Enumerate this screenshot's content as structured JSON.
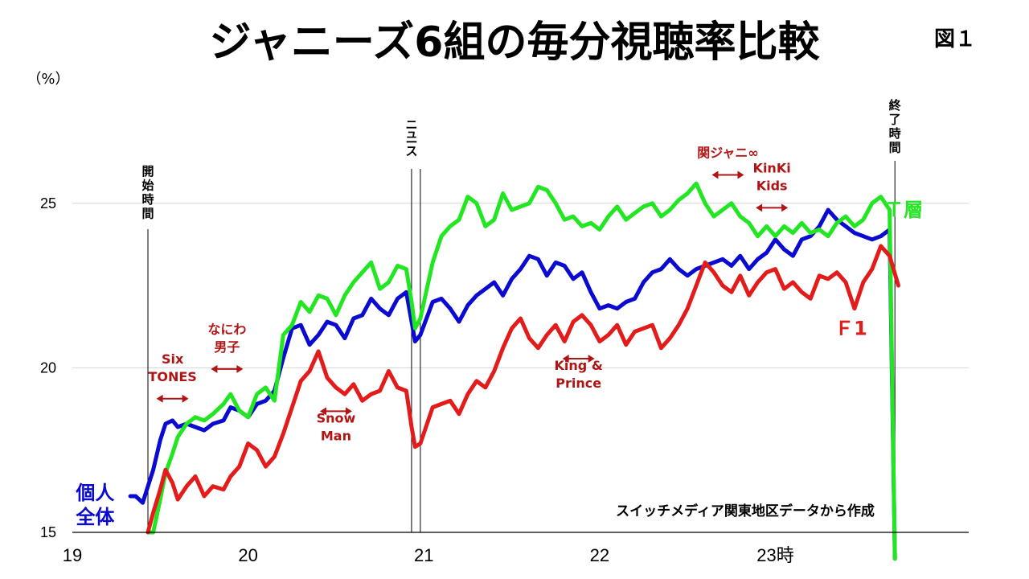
{
  "chart_data": {
    "type": "line",
    "title": "ジャニーズ6組の毎分視聴率比較",
    "figure_label": "図１",
    "unit_label": "（%）",
    "source_note": "スイッチメディア関東地区データから作成",
    "x_ticks": [
      {
        "value": 19,
        "label": "19"
      },
      {
        "value": 20,
        "label": "20"
      },
      {
        "value": 21,
        "label": "21"
      },
      {
        "value": 22,
        "label": "22"
      },
      {
        "value": 23,
        "label": "23時"
      }
    ],
    "y_ticks": [
      15,
      20,
      25
    ],
    "xlim": [
      19,
      24.1
    ],
    "ylim": [
      15,
      28
    ],
    "grid": "horizontal",
    "markers": [
      {
        "x": 19.43,
        "label": "開始時間"
      },
      {
        "x": 20.93,
        "label": "ニュース"
      },
      {
        "x": 20.98,
        "label": ""
      },
      {
        "x": 23.68,
        "label": "終了時間"
      }
    ],
    "segment_labels": [
      {
        "lines": [
          "Six",
          "TONES"
        ],
        "x": 19.57,
        "y": 19.6
      },
      {
        "lines": [
          "なにわ",
          "男子"
        ],
        "x": 19.88,
        "y": 20.5
      },
      {
        "lines": [
          "Snow",
          "Man"
        ],
        "x": 20.5,
        "y": 17.8
      },
      {
        "lines": [
          "King &",
          "Prince"
        ],
        "x": 21.88,
        "y": 19.4
      },
      {
        "lines": [
          "関ジャニ∞"
        ],
        "x": 22.73,
        "y": 26.4
      },
      {
        "lines": [
          "KinKi",
          "Kids"
        ],
        "x": 22.98,
        "y": 25.4
      }
    ],
    "series": [
      {
        "name": "個人\n全体",
        "color": "#0a0ad0",
        "x": [
          19.33,
          19.36,
          19.4,
          19.43,
          19.46,
          19.5,
          19.53,
          19.57,
          19.6,
          19.65,
          19.7,
          19.75,
          19.8,
          19.86,
          19.9,
          19.95,
          20.0,
          20.05,
          20.1,
          20.15,
          20.2,
          20.25,
          20.3,
          20.35,
          20.4,
          20.45,
          20.5,
          20.55,
          20.6,
          20.65,
          20.7,
          20.75,
          20.8,
          20.85,
          20.9,
          20.93,
          20.95,
          20.98,
          21.05,
          21.1,
          21.15,
          21.2,
          21.25,
          21.3,
          21.35,
          21.4,
          21.45,
          21.5,
          21.55,
          21.6,
          21.65,
          21.7,
          21.75,
          21.8,
          21.85,
          21.9,
          21.95,
          22.0,
          22.05,
          22.1,
          22.15,
          22.2,
          22.25,
          22.3,
          22.35,
          22.4,
          22.45,
          22.5,
          22.55,
          22.6,
          22.65,
          22.7,
          22.75,
          22.8,
          22.85,
          22.9,
          22.95,
          23.0,
          23.05,
          23.1,
          23.15,
          23.2,
          23.25,
          23.3,
          23.35,
          23.4,
          23.45,
          23.5,
          23.55,
          23.6,
          23.65,
          23.68
        ],
        "y": [
          16.1,
          16.1,
          15.9,
          16.4,
          16.9,
          17.8,
          18.3,
          18.4,
          18.2,
          18.3,
          18.2,
          18.1,
          18.3,
          18.4,
          18.8,
          18.7,
          18.5,
          18.9,
          19.0,
          19.3,
          20.3,
          21.2,
          21.3,
          20.7,
          21.0,
          21.4,
          21.3,
          20.9,
          21.5,
          21.6,
          22.1,
          21.8,
          21.6,
          22.1,
          22.3,
          21.4,
          20.8,
          21.0,
          22.0,
          22.1,
          21.8,
          21.4,
          21.9,
          22.2,
          22.4,
          22.6,
          22.2,
          22.7,
          23.0,
          23.4,
          23.3,
          22.8,
          23.2,
          23.1,
          22.7,
          22.9,
          22.3,
          21.8,
          21.9,
          21.8,
          22.0,
          22.1,
          22.6,
          22.9,
          23.0,
          23.3,
          23.0,
          22.8,
          23.0,
          23.1,
          23.2,
          23.3,
          23.1,
          23.4,
          23.0,
          23.3,
          23.5,
          23.9,
          23.6,
          23.4,
          23.9,
          24.0,
          24.3,
          24.8,
          24.5,
          24.3,
          24.1,
          24.0,
          23.9,
          24.0,
          24.2,
          14.2
        ]
      },
      {
        "name": "Ｔ層",
        "color": "#22e622",
        "x": [
          19.43,
          19.46,
          19.5,
          19.53,
          19.57,
          19.6,
          19.65,
          19.7,
          19.75,
          19.8,
          19.86,
          19.9,
          19.95,
          20.0,
          20.05,
          20.1,
          20.15,
          20.2,
          20.25,
          20.3,
          20.35,
          20.4,
          20.45,
          20.5,
          20.55,
          20.6,
          20.65,
          20.7,
          20.75,
          20.8,
          20.85,
          20.9,
          20.93,
          20.95,
          20.98,
          21.05,
          21.1,
          21.15,
          21.2,
          21.25,
          21.3,
          21.35,
          21.4,
          21.45,
          21.5,
          21.55,
          21.6,
          21.65,
          21.7,
          21.75,
          21.8,
          21.85,
          21.9,
          21.95,
          22.0,
          22.05,
          22.1,
          22.15,
          22.2,
          22.25,
          22.3,
          22.35,
          22.4,
          22.45,
          22.5,
          22.55,
          22.6,
          22.65,
          22.7,
          22.75,
          22.8,
          22.85,
          22.9,
          22.95,
          23.0,
          23.05,
          23.1,
          23.15,
          23.2,
          23.25,
          23.3,
          23.35,
          23.4,
          23.45,
          23.5,
          23.55,
          23.6,
          23.65,
          23.68
        ],
        "y": [
          15.0,
          15.0,
          16.0,
          16.8,
          17.4,
          17.9,
          18.3,
          18.5,
          18.4,
          18.6,
          18.9,
          19.2,
          18.7,
          18.5,
          19.2,
          19.4,
          19.0,
          21.0,
          21.3,
          22.0,
          21.7,
          22.2,
          22.1,
          21.6,
          22.2,
          22.6,
          22.9,
          23.2,
          22.4,
          22.6,
          23.1,
          23.0,
          22.0,
          21.2,
          21.5,
          23.2,
          24.0,
          24.3,
          24.5,
          25.2,
          25.0,
          24.3,
          24.5,
          25.3,
          24.8,
          24.9,
          25.0,
          25.5,
          25.4,
          25.0,
          24.5,
          24.6,
          24.3,
          24.4,
          24.2,
          24.6,
          24.9,
          24.5,
          24.7,
          24.9,
          25.0,
          24.6,
          24.8,
          25.1,
          25.3,
          25.6,
          25.0,
          24.6,
          24.8,
          25.0,
          24.6,
          24.4,
          24.0,
          24.3,
          24.0,
          24.3,
          24.1,
          24.4,
          24.1,
          24.2,
          24.0,
          24.4,
          24.6,
          24.3,
          24.5,
          25.0,
          25.2,
          24.8,
          14.2
        ]
      },
      {
        "name": "Ｆ1",
        "color": "#e31b1b",
        "x": [
          19.43,
          19.46,
          19.5,
          19.53,
          19.57,
          19.6,
          19.65,
          19.7,
          19.75,
          19.8,
          19.86,
          19.9,
          19.95,
          20.0,
          20.05,
          20.1,
          20.15,
          20.2,
          20.25,
          20.3,
          20.35,
          20.4,
          20.45,
          20.5,
          20.55,
          20.6,
          20.65,
          20.7,
          20.75,
          20.8,
          20.85,
          20.9,
          20.93,
          20.95,
          20.98,
          21.05,
          21.1,
          21.15,
          21.2,
          21.25,
          21.3,
          21.35,
          21.4,
          21.45,
          21.5,
          21.55,
          21.6,
          21.65,
          21.7,
          21.75,
          21.8,
          21.85,
          21.9,
          21.95,
          22.0,
          22.05,
          22.1,
          22.15,
          22.2,
          22.25,
          22.3,
          22.35,
          22.4,
          22.45,
          22.5,
          22.55,
          22.6,
          22.65,
          22.7,
          22.75,
          22.8,
          22.85,
          22.9,
          22.95,
          23.0,
          23.05,
          23.1,
          23.15,
          23.2,
          23.25,
          23.3,
          23.35,
          23.4,
          23.45,
          23.5,
          23.55,
          23.6,
          23.65,
          23.7
        ],
        "y": [
          15.0,
          15.6,
          16.3,
          16.9,
          16.5,
          16.0,
          16.4,
          16.7,
          16.1,
          16.4,
          16.3,
          16.7,
          17.0,
          17.7,
          17.5,
          17.0,
          17.3,
          18.0,
          18.8,
          19.6,
          19.9,
          20.5,
          19.7,
          19.4,
          19.2,
          19.5,
          19.0,
          19.2,
          19.3,
          19.9,
          19.4,
          19.3,
          18.2,
          17.6,
          17.7,
          18.8,
          18.9,
          19.0,
          18.6,
          19.2,
          19.6,
          19.4,
          19.9,
          20.6,
          21.2,
          21.5,
          20.9,
          20.6,
          21.0,
          21.3,
          20.8,
          21.4,
          21.6,
          21.3,
          20.8,
          21.0,
          21.3,
          20.7,
          21.1,
          21.2,
          21.3,
          20.6,
          20.9,
          21.3,
          21.8,
          22.5,
          23.2,
          22.9,
          22.5,
          22.3,
          22.8,
          22.2,
          22.6,
          22.9,
          23.0,
          22.4,
          22.6,
          22.3,
          22.1,
          22.8,
          22.7,
          22.9,
          22.6,
          21.8,
          22.6,
          23.0,
          23.7,
          23.4,
          22.5
        ]
      }
    ],
    "series_labels": [
      {
        "lines": [
          "個人",
          "全体"
        ],
        "x": 19.13,
        "y": 16.0,
        "color": "#0a0ad0"
      },
      {
        "lines": [
          "Ｔ層"
        ],
        "x": 23.73,
        "y": 24.6,
        "color": "#22e622"
      },
      {
        "lines": [
          "Ｆ1"
        ],
        "x": 23.43,
        "y": 21.0,
        "color": "#e31b1b"
      }
    ]
  }
}
